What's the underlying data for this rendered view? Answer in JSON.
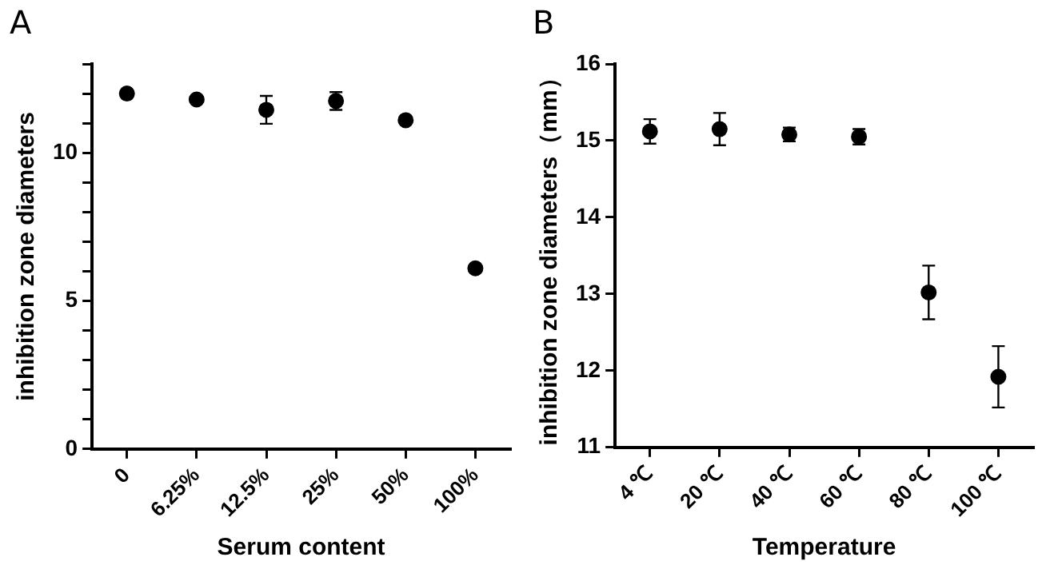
{
  "chart_data": [
    {
      "type": "scatter",
      "title": "A",
      "xlabel": "Serum content",
      "ylabel": "inhibition zone diameters",
      "categories": [
        "0",
        "6.25%",
        "12.5%",
        "25%",
        "50%",
        "100%"
      ],
      "values": [
        12.0,
        11.8,
        11.45,
        11.75,
        11.1,
        6.1
      ],
      "errors": [
        null,
        null,
        0.47,
        0.3,
        null,
        null
      ],
      "color": "#000000",
      "marker": "circle",
      "grid": false,
      "ylim": [
        0,
        13
      ],
      "yticks": [
        0,
        {
          "value": 1,
          "label": null
        },
        {
          "value": 2,
          "label": null
        },
        {
          "value": 3,
          "label": null
        },
        {
          "value": 4,
          "label": null
        },
        5,
        {
          "value": 6,
          "label": null
        },
        {
          "value": 7,
          "label": null
        },
        {
          "value": 8,
          "label": null
        },
        {
          "value": 9,
          "label": null
        },
        10,
        {
          "value": 11,
          "label": null
        },
        {
          "value": 12,
          "label": null
        },
        {
          "value": 13,
          "label": null
        }
      ]
    },
    {
      "type": "scatter",
      "title": "B",
      "xlabel": "Temperature",
      "ylabel": "inhibition zone diameters（mm）",
      "categories": [
        "4 ℃",
        "20 ℃",
        "40 ℃",
        "60 ℃",
        "80 ℃",
        "100 ℃"
      ],
      "values": [
        15.12,
        15.15,
        15.08,
        15.05,
        13.02,
        11.92
      ],
      "errors": [
        0.16,
        0.21,
        0.09,
        0.1,
        0.35,
        0.4
      ],
      "color": "#000000",
      "marker": "circle",
      "grid": false,
      "ylim": [
        11,
        16
      ],
      "yticks": [
        11,
        12,
        13,
        14,
        15,
        16
      ]
    }
  ]
}
